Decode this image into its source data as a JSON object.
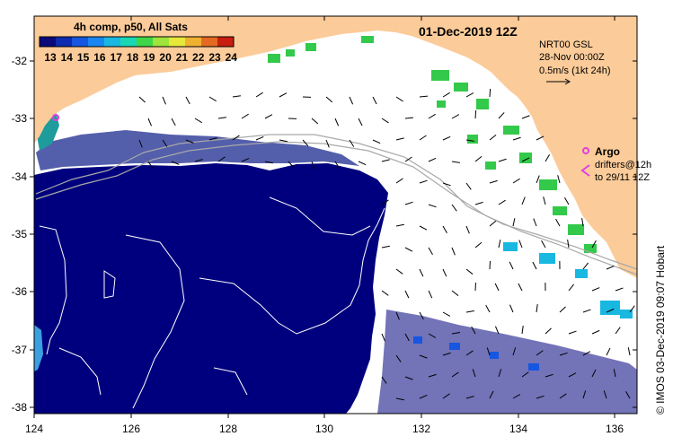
{
  "map": {
    "title": "01-Dec-2019 12Z",
    "colorbar": {
      "label": "4h comp, p50, All Sats",
      "ticks": [
        "13",
        "14",
        "15",
        "16",
        "17",
        "18",
        "19",
        "20",
        "21",
        "22",
        "23",
        "24"
      ],
      "colors": [
        "#0a0a7a",
        "#0f2bb0",
        "#1656e0",
        "#1a86f0",
        "#18b8e0",
        "#19d6b4",
        "#3fd64a",
        "#9ee43a",
        "#e8e83a",
        "#f0b030",
        "#e46a22",
        "#c81e10"
      ]
    },
    "legend": {
      "line1": "NRT00 GSL",
      "line2": "28-Nov 00:00Z",
      "line3": "0.5m/s (1kt 24h)"
    },
    "argo": {
      "label": "Argo",
      "note1": "drifters@12h",
      "note2": "to 29/11 12Z",
      "color": "#e040e0"
    },
    "credit": "© IMOS 03-Dec-2019 09:07 Hobart",
    "x_ticks": [
      "124",
      "126",
      "128",
      "130",
      "132",
      "134",
      "136"
    ],
    "y_ticks": [
      "-32",
      "-33",
      "-34",
      "-35",
      "-36",
      "-37",
      "-38"
    ],
    "colors": {
      "land": "#fbcb99",
      "cold_water": "#00007e",
      "cloud": "#ffffff",
      "argo": "#e040e0"
    }
  }
}
